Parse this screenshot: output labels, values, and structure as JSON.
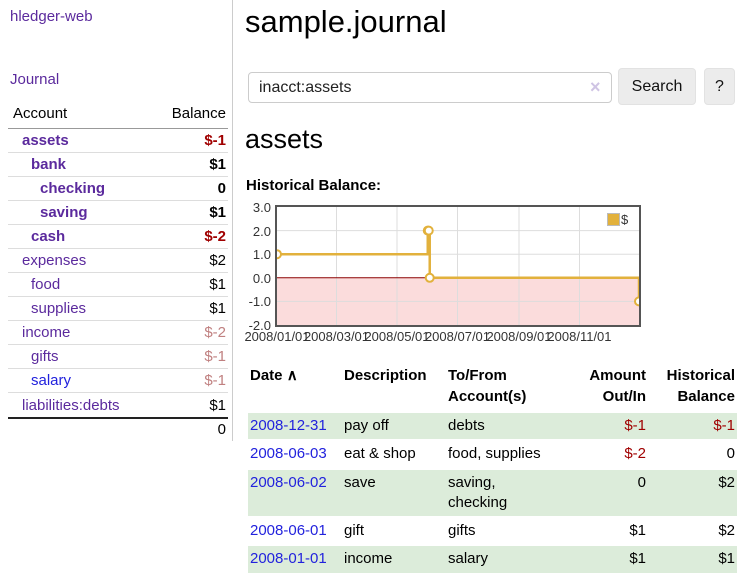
{
  "app": {
    "title": "hledger-web"
  },
  "colors": {
    "accent_purple": "#5b2a9d",
    "link_blue": "#2222dd",
    "negative_strong": "#a00000",
    "negative_soft": "#c08080",
    "row_green": "#dcecda"
  },
  "sidebar": {
    "journal_label": "Journal",
    "accounts": {
      "headers": {
        "account": "Account",
        "balance": "Balance"
      },
      "rows": [
        {
          "label": "assets",
          "balance": "$-1"
        },
        {
          "label": "bank",
          "balance": "$1"
        },
        {
          "label": "checking",
          "balance": "0"
        },
        {
          "label": "saving",
          "balance": "$1"
        },
        {
          "label": "cash",
          "balance": "$-2"
        },
        {
          "label": "expenses",
          "balance": "$2"
        },
        {
          "label": "food",
          "balance": "$1"
        },
        {
          "label": "supplies",
          "balance": "$1"
        },
        {
          "label": "income",
          "balance": "$-2"
        },
        {
          "label": "gifts",
          "balance": "$-1"
        },
        {
          "label": "salary",
          "balance": "$-1"
        },
        {
          "label": "liabilities:debts",
          "balance": "$1"
        }
      ],
      "total": "0"
    }
  },
  "main": {
    "title": "sample.journal",
    "search": {
      "value": "inacct:assets",
      "clear_icon": "×",
      "button_label": "Search",
      "help_label": "?"
    },
    "account_heading": "assets",
    "chart_heading": "Historical Balance:",
    "chart_data": {
      "type": "line",
      "step": true,
      "title": "Historical Balance:",
      "series": [
        {
          "name": "$",
          "x": [
            "2008-01-01",
            "2008-06-01",
            "2008-06-02",
            "2008-06-03",
            "2008-12-31"
          ],
          "y": [
            1,
            2,
            2,
            0,
            -1
          ]
        }
      ],
      "x_range": [
        "2008-01-01",
        "2008-12-31"
      ],
      "xticks": [
        "2008/01/01",
        "2008/03/01",
        "2008/05/01",
        "2008/07/01",
        "2008/09/01",
        "2008/11/01"
      ],
      "yticks": [
        3,
        2,
        1,
        0,
        -1,
        -2
      ],
      "ytick_labels": [
        "3.0",
        "2.0",
        "1.0",
        "0.0",
        "-1.0",
        "-2.0"
      ],
      "ylim": [
        -2,
        3
      ],
      "grid": true,
      "legend_position": "top-right",
      "line_color": "#e2b13c",
      "zero_line_color": "#8b0000",
      "negative_region_color": "#fbdcdc"
    },
    "register": {
      "headers": {
        "date": "Date",
        "description": "Description",
        "account": "To/From Account(s)",
        "amount": "Amount Out/In",
        "balance": "Historical Balance"
      },
      "sort_indicator": "∧",
      "rows": [
        {
          "date": "2008-12-31",
          "description": "pay off",
          "account": "debts",
          "amount": "$-1",
          "balance": "$-1"
        },
        {
          "date": "2008-06-03",
          "description": "eat & shop",
          "account": "food, supplies",
          "amount": "$-2",
          "balance": "0"
        },
        {
          "date": "2008-06-02",
          "description": "save",
          "account": "saving, checking",
          "amount": "0",
          "balance": "$2"
        },
        {
          "date": "2008-06-01",
          "description": "gift",
          "account": "gifts",
          "amount": "$1",
          "balance": "$2"
        },
        {
          "date": "2008-01-01",
          "description": "income",
          "account": "salary",
          "amount": "$1",
          "balance": "$1"
        }
      ]
    }
  }
}
